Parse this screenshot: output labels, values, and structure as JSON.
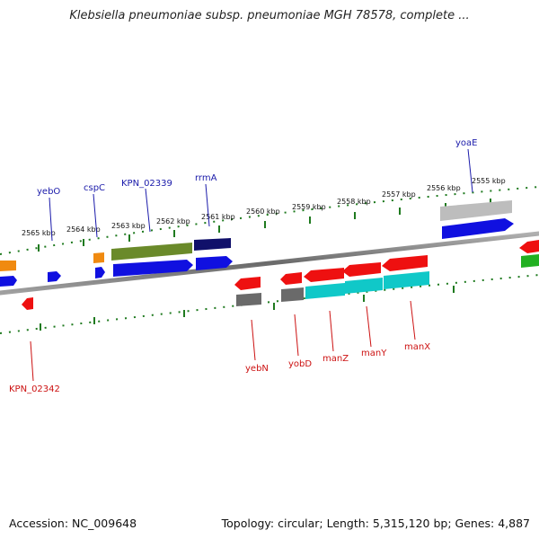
{
  "title": "Klebsiella pneumoniae subsp. pneumoniae MGH 78578, complete ...",
  "footer": {
    "accession": "Accession: NC_009648",
    "topology": "Topology: circular; Length: 5,315,120 bp; Genes: 4,887"
  },
  "ticks": [
    "2565 kbp",
    "2564 kbp",
    "2563 kbp",
    "2562 kbp",
    "2561 kbp",
    "2560 kbp",
    "2559 kbp",
    "2558 kbp",
    "2557 kbp",
    "2556 kbp",
    "2555 kbp"
  ],
  "labels_top": [
    "yebO",
    "cspC",
    "KPN_02339",
    "rrmA",
    "yoaE"
  ],
  "labels_bottom": [
    "KPN_02342",
    "yebN",
    "yobD",
    "manZ",
    "manY",
    "manX"
  ],
  "colors": {
    "label_top": "#1a1aaa",
    "label_bottom": "#cc1111",
    "tick": "#1f7a1f",
    "backbone": "#8a8a8a",
    "blue": "#1010e0",
    "red": "#ee1010",
    "olive": "#6a8a2a",
    "navy": "#10106a",
    "gray": "#6a6a6a",
    "lightgray": "#bdbdbd",
    "cyan": "#10c8c8",
    "orange": "#f08a10",
    "green": "#22b022"
  }
}
